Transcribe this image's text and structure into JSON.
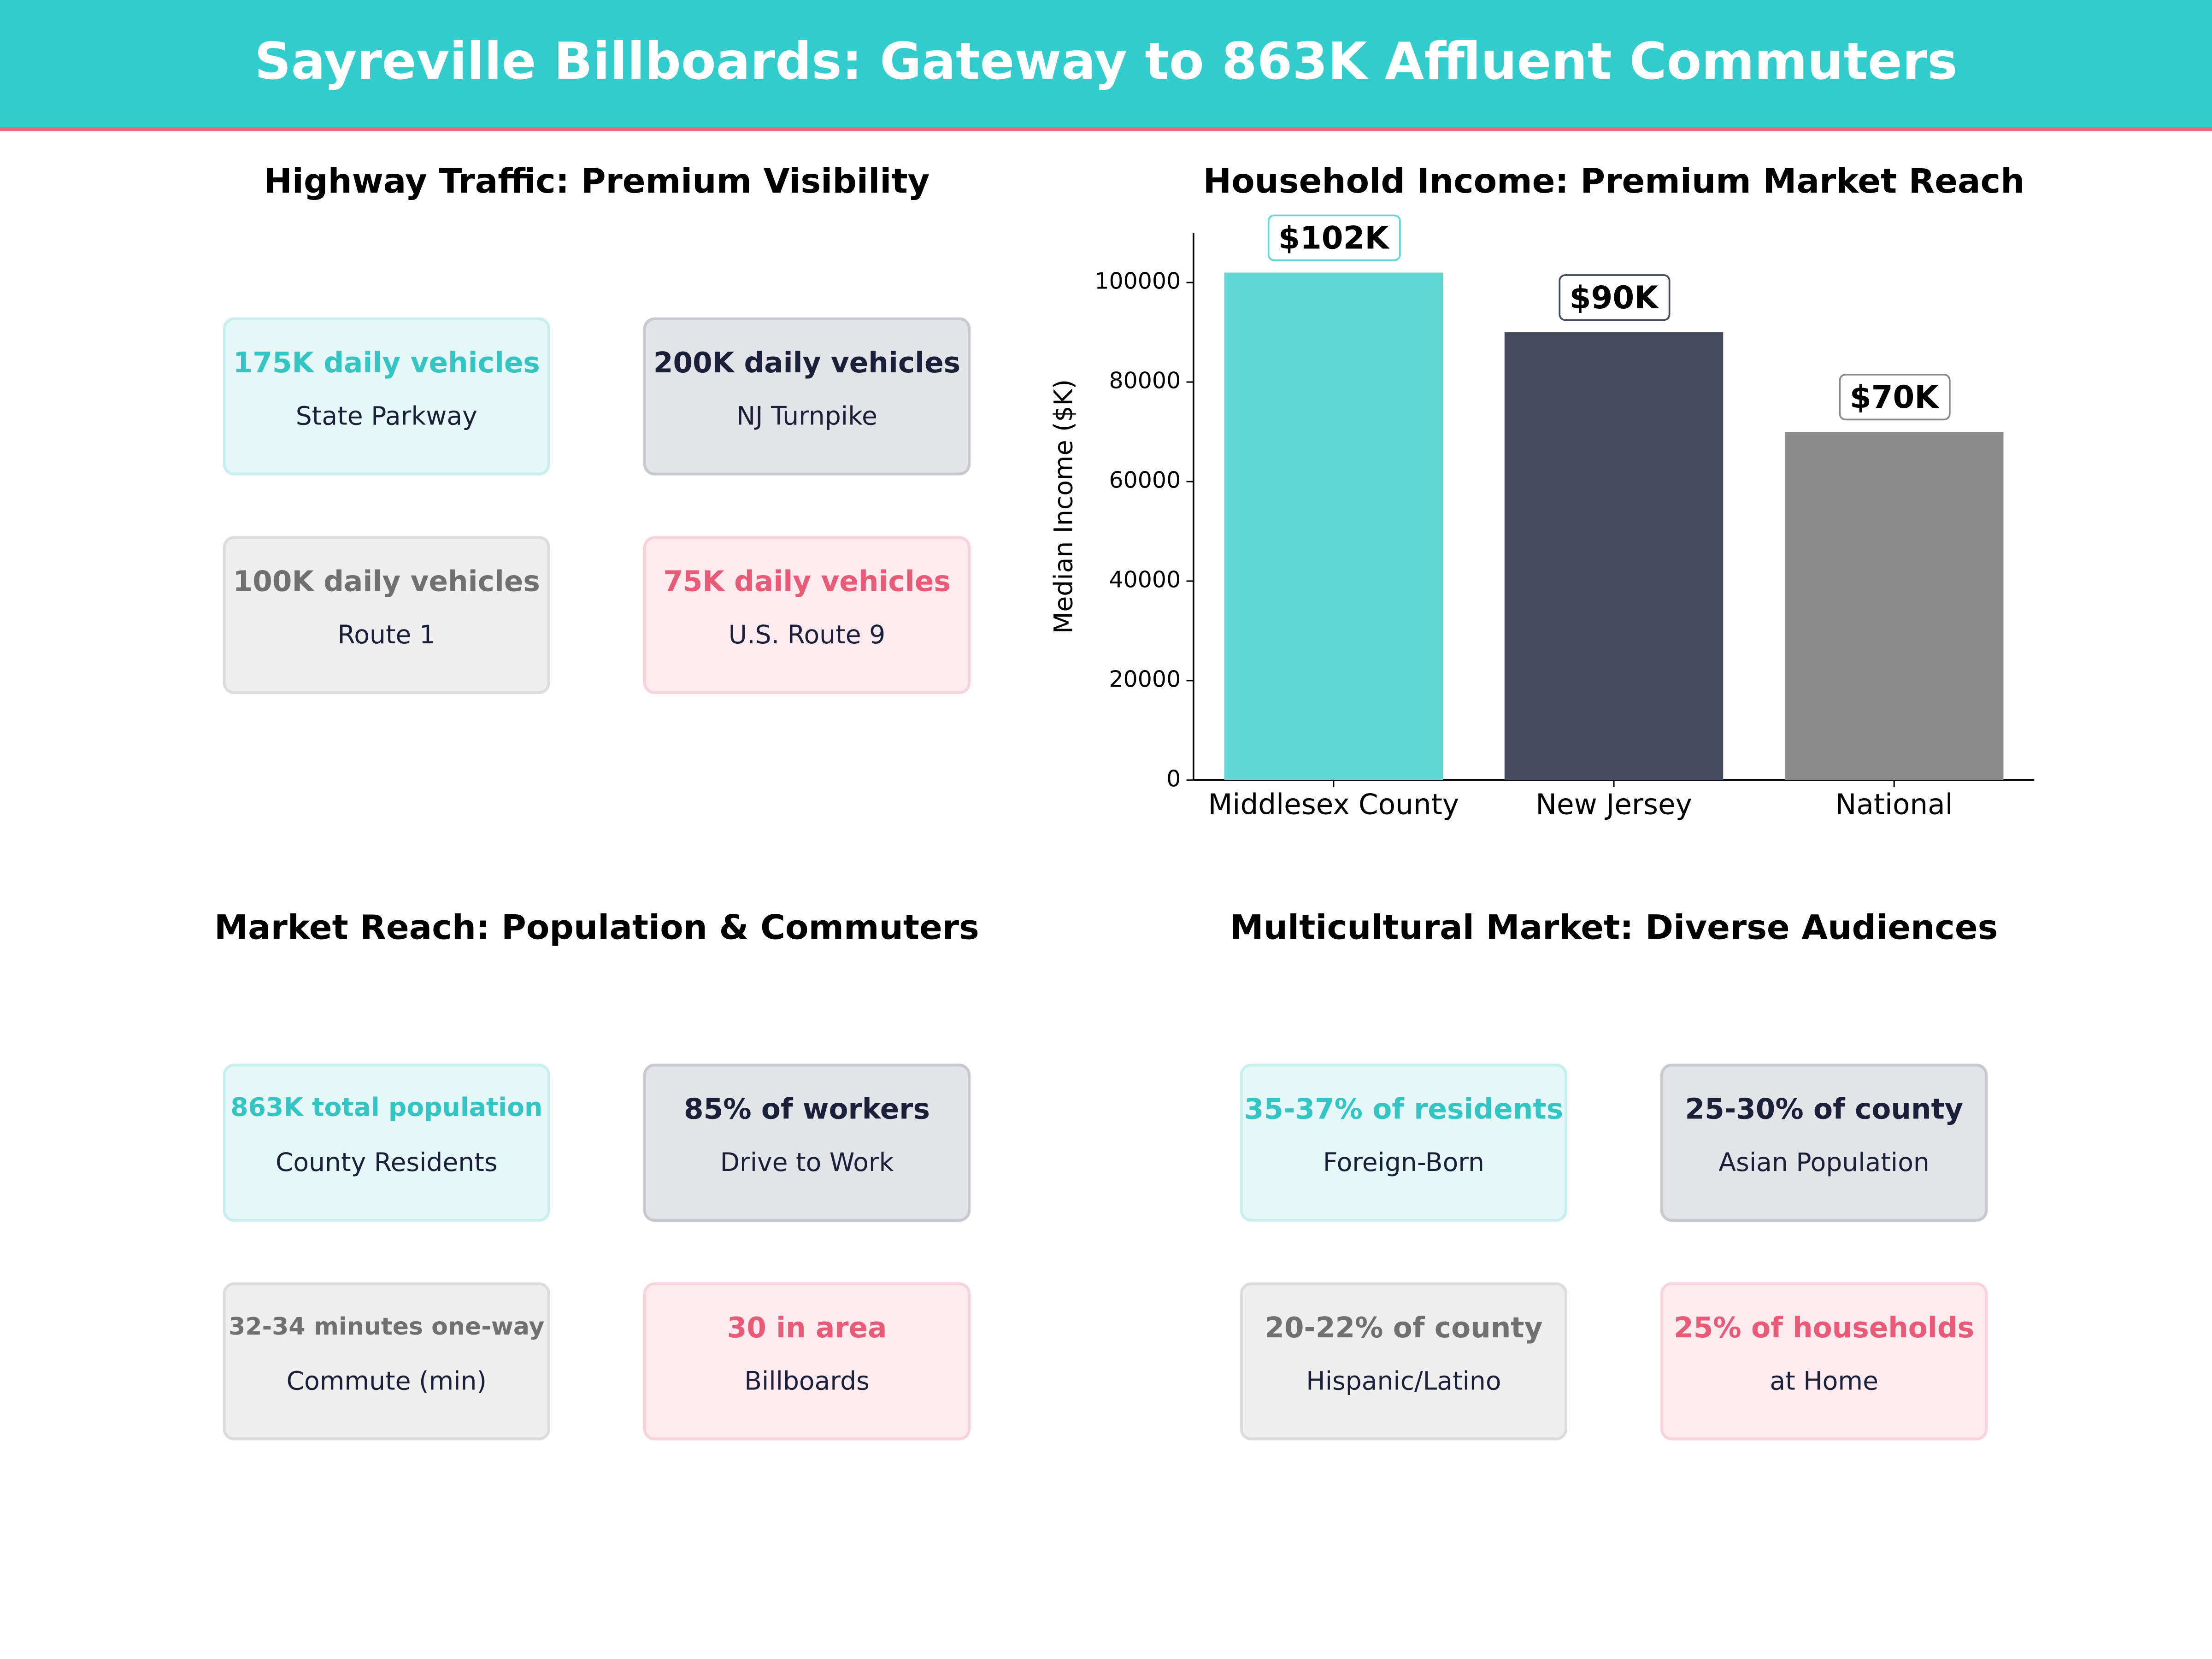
{
  "title": "Sayreville Billboards: Gateway to 863K Affluent Commuters",
  "card_panels": [
    {
      "title": "Highway Traffic: Premium Visibility",
      "cards": [
        {
          "value": "175K daily vehicles",
          "label": "State Parkway"
        },
        {
          "value": "200K daily vehicles",
          "label": "NJ Turnpike"
        },
        {
          "value": "100K daily vehicles",
          "label": "Route 1"
        },
        {
          "value": "75K daily vehicles",
          "label": "U.S. Route 9"
        }
      ]
    },
    {
      "title": "Market Reach: Population & Commuters",
      "cards": [
        {
          "value": "863K total population",
          "label": "County Residents"
        },
        {
          "value": "85% of workers",
          "label": "Drive to Work"
        },
        {
          "value": "32-34 minutes one-way",
          "label": "Commute (min)"
        },
        {
          "value": "30 in area",
          "label": "Billboards"
        }
      ]
    },
    {
      "title": "Multicultural Market: Diverse Audiences",
      "cards": [
        {
          "value": "35-37% of residents",
          "label": "Foreign-Born"
        },
        {
          "value": "25-30% of county",
          "label": "Asian Population"
        },
        {
          "value": "20-22% of county",
          "label": "Hispanic/Latino"
        },
        {
          "value": "25% of households",
          "label": "at Home"
        }
      ]
    }
  ],
  "chart_data": {
    "type": "bar",
    "title": "Household Income: Premium Market Reach",
    "y_label": "Median Income ($K)",
    "categories": [
      "Middlesex County",
      "New Jersey",
      "National"
    ],
    "values": [
      102000,
      90000,
      70000
    ],
    "value_labels": [
      "$102K",
      "$90K",
      "$70K"
    ],
    "colors": [
      "#5dd8d4",
      "#454a5e",
      "#8a8a8a"
    ],
    "ylim": [
      0,
      110000
    ],
    "yticks": [
      0,
      20000,
      40000,
      60000,
      80000,
      100000
    ],
    "grid": false
  }
}
